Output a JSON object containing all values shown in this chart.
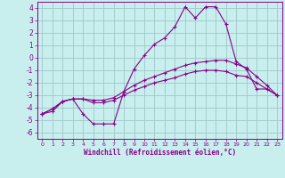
{
  "xlabel": "Windchill (Refroidissement éolien,°C)",
  "background_color": "#c8eeee",
  "grid_color": "#a0c8c8",
  "line_color": "#880088",
  "x_ticks": [
    0,
    1,
    2,
    3,
    4,
    5,
    6,
    7,
    8,
    9,
    10,
    11,
    12,
    13,
    14,
    15,
    16,
    17,
    18,
    19,
    20,
    21,
    22,
    23
  ],
  "y_ticks": [
    -6,
    -5,
    -4,
    -3,
    -2,
    -1,
    0,
    1,
    2,
    3,
    4
  ],
  "ylim": [
    -6.5,
    4.5
  ],
  "xlim": [
    -0.5,
    23.5
  ],
  "line1_x": [
    0,
    1,
    2,
    3,
    4,
    5,
    6,
    7,
    8,
    9,
    10,
    11,
    12,
    13,
    14,
    15,
    16,
    17,
    18,
    19,
    20,
    21,
    22,
    23
  ],
  "line1_y": [
    -4.5,
    -4.3,
    -3.5,
    -3.3,
    -4.5,
    -5.3,
    -5.3,
    -5.3,
    -2.7,
    -0.9,
    0.2,
    1.1,
    1.6,
    2.5,
    4.1,
    3.2,
    4.1,
    4.1,
    2.7,
    -0.3,
    -0.9,
    -2.5,
    -2.5,
    -3.0
  ],
  "line2_x": [
    0,
    1,
    2,
    3,
    4,
    5,
    6,
    7,
    8,
    9,
    10,
    11,
    12,
    13,
    14,
    15,
    16,
    17,
    18,
    19,
    20,
    21,
    22,
    23
  ],
  "line2_y": [
    -4.5,
    -4.1,
    -3.5,
    -3.3,
    -3.3,
    -3.4,
    -3.4,
    -3.2,
    -2.7,
    -2.2,
    -1.8,
    -1.5,
    -1.2,
    -0.9,
    -0.6,
    -0.4,
    -0.3,
    -0.2,
    -0.2,
    -0.5,
    -0.8,
    -1.5,
    -2.2,
    -3.0
  ],
  "line3_x": [
    0,
    1,
    2,
    3,
    4,
    5,
    6,
    7,
    8,
    9,
    10,
    11,
    12,
    13,
    14,
    15,
    16,
    17,
    18,
    19,
    20,
    21,
    22,
    23
  ],
  "line3_y": [
    -4.5,
    -4.1,
    -3.5,
    -3.3,
    -3.3,
    -3.6,
    -3.6,
    -3.4,
    -3.0,
    -2.6,
    -2.3,
    -2.0,
    -1.8,
    -1.6,
    -1.3,
    -1.1,
    -1.0,
    -1.0,
    -1.1,
    -1.4,
    -1.5,
    -2.0,
    -2.5,
    -3.0
  ]
}
